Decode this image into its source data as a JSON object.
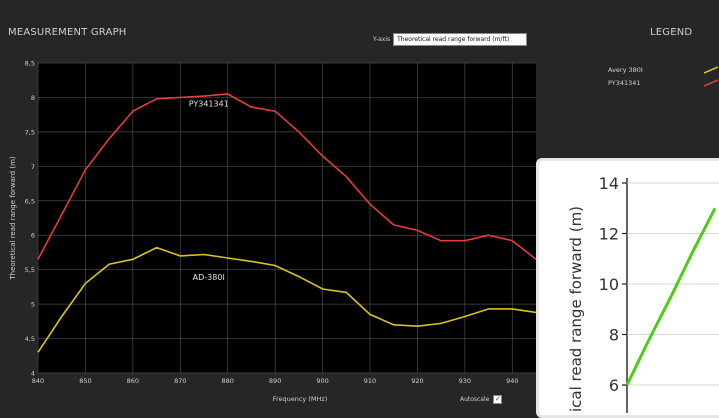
{
  "header": {
    "graph_title": "MEASUREMENT GRAPH",
    "legend_title": "LEGEND",
    "yaxis_label": "Y-axis",
    "yaxis_value": "Theoretical read range forward (m/ft)"
  },
  "legend": {
    "items": [
      {
        "name": "Avery 380I",
        "color": "#d9c41a"
      },
      {
        "name": "PY341341",
        "color": "#e23d3d"
      }
    ]
  },
  "autoscale": {
    "label": "Autoscale",
    "checked": true
  },
  "chart_data": [
    {
      "type": "line",
      "title": "",
      "xlabel": "Frequency (MHz)",
      "ylabel": "Theoretical read range forward (m)",
      "xlim": [
        840,
        945
      ],
      "ylim": [
        4,
        8.5
      ],
      "x_ticks": [
        "840",
        "850",
        "860",
        "870",
        "880",
        "890",
        "900",
        "910",
        "920",
        "930",
        "940"
      ],
      "y_ticks": [
        "4",
        "4,5",
        "5",
        "5,5",
        "6",
        "6,5",
        "7",
        "7,5",
        "8",
        "8,5"
      ],
      "grid": true,
      "annotations": [
        {
          "text": "PY341341",
          "x": 876,
          "y": 7.87
        },
        {
          "text": "AD-380I",
          "x": 876,
          "y": 5.35
        }
      ],
      "series": [
        {
          "name": "PY341341",
          "color": "#e23d3d",
          "x": [
            840,
            845,
            850,
            855,
            860,
            865,
            870,
            875,
            880,
            885,
            890,
            895,
            900,
            905,
            910,
            915,
            920,
            925,
            930,
            935,
            940,
            945
          ],
          "y": [
            5.65,
            6.3,
            6.95,
            7.4,
            7.8,
            7.98,
            8.0,
            8.02,
            8.05,
            7.86,
            7.8,
            7.5,
            7.15,
            6.85,
            6.45,
            6.15,
            6.07,
            5.92,
            5.92,
            6.0,
            5.92,
            5.65
          ]
        },
        {
          "name": "AD-380I",
          "color": "#d9c41a",
          "x": [
            840,
            845,
            850,
            855,
            860,
            865,
            870,
            875,
            880,
            885,
            890,
            895,
            900,
            905,
            910,
            915,
            920,
            925,
            930,
            935,
            940,
            945
          ],
          "y": [
            4.3,
            4.82,
            5.3,
            5.58,
            5.65,
            5.82,
            5.7,
            5.72,
            5.67,
            5.62,
            5.56,
            5.4,
            5.22,
            5.17,
            4.85,
            4.7,
            4.68,
            4.72,
            4.82,
            4.93,
            4.93,
            4.88
          ]
        }
      ]
    },
    {
      "type": "line",
      "title": "",
      "ylabel": "ical read range forward (m)",
      "y_ticks": [
        "6",
        "8",
        "10",
        "12",
        "14"
      ],
      "grid": true,
      "series": [
        {
          "color": "#4ccd16",
          "x": [
            0,
            1,
            2,
            3,
            4
          ],
          "y": [
            6,
            7.8,
            9.5,
            11.3,
            13.0
          ]
        }
      ]
    }
  ]
}
